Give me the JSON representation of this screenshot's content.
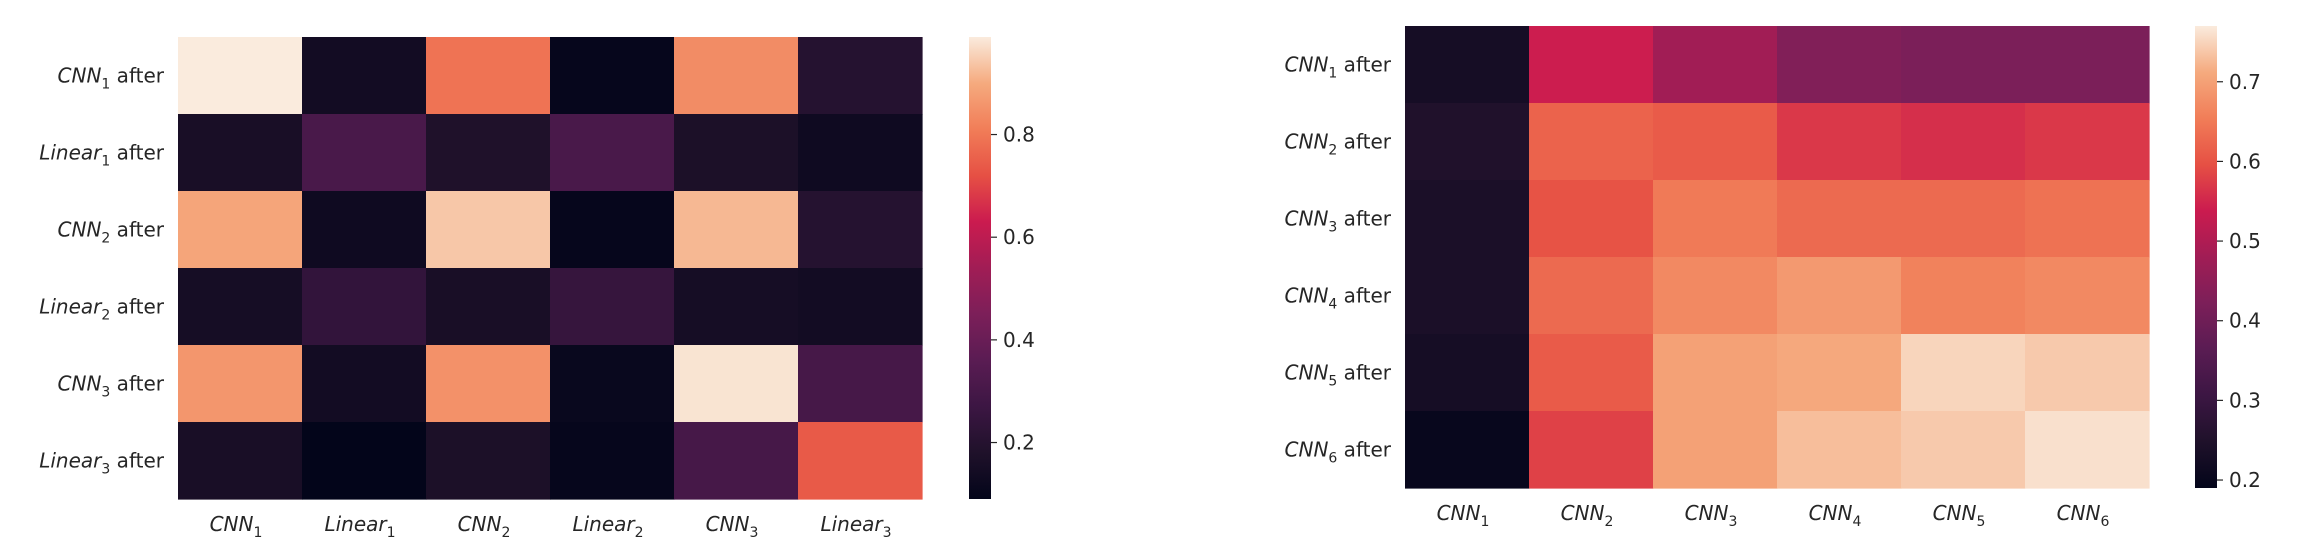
{
  "chart_data": [
    {
      "type": "heatmap",
      "rows": [
        {
          "main": "CNN",
          "sub": "1",
          "suffix": " after"
        },
        {
          "main": "Linear",
          "sub": "1",
          "suffix": " after"
        },
        {
          "main": "CNN",
          "sub": "2",
          "suffix": " after"
        },
        {
          "main": "Linear",
          "sub": "2",
          "suffix": " after"
        },
        {
          "main": "CNN",
          "sub": "3",
          "suffix": " after"
        },
        {
          "main": "Linear",
          "sub": "3",
          "suffix": " after"
        }
      ],
      "cols": [
        {
          "main": "CNN",
          "sub": "1"
        },
        {
          "main": "Linear",
          "sub": "1"
        },
        {
          "main": "CNN",
          "sub": "2"
        },
        {
          "main": "Linear",
          "sub": "2"
        },
        {
          "main": "CNN",
          "sub": "3"
        },
        {
          "main": "Linear",
          "sub": "3"
        }
      ],
      "values": [
        [
          0.99,
          0.14,
          0.79,
          0.1,
          0.84,
          0.2
        ],
        [
          0.16,
          0.31,
          0.18,
          0.31,
          0.17,
          0.13
        ],
        [
          0.89,
          0.13,
          0.94,
          0.1,
          0.92,
          0.2
        ],
        [
          0.15,
          0.24,
          0.16,
          0.25,
          0.15,
          0.14
        ],
        [
          0.86,
          0.14,
          0.85,
          0.11,
          0.98,
          0.3
        ],
        [
          0.16,
          0.09,
          0.17,
          0.1,
          0.3,
          0.74
        ]
      ],
      "colorbar": {
        "min": 0.09,
        "max": 0.99,
        "ticks": [
          "0.2",
          "0.4",
          "0.6",
          "0.8"
        ]
      }
    },
    {
      "type": "heatmap",
      "rows": [
        {
          "main": "CNN",
          "sub": "1",
          "suffix": " after"
        },
        {
          "main": "CNN",
          "sub": "2",
          "suffix": " after"
        },
        {
          "main": "CNN",
          "sub": "3",
          "suffix": " after"
        },
        {
          "main": "CNN",
          "sub": "4",
          "suffix": " after"
        },
        {
          "main": "CNN",
          "sub": "5",
          "suffix": " after"
        },
        {
          "main": "CNN",
          "sub": "6",
          "suffix": " after"
        }
      ],
      "cols": [
        {
          "main": "CNN",
          "sub": "1"
        },
        {
          "main": "CNN",
          "sub": "2"
        },
        {
          "main": "CNN",
          "sub": "3"
        },
        {
          "main": "CNN",
          "sub": "4"
        },
        {
          "main": "CNN",
          "sub": "5"
        },
        {
          "main": "CNN",
          "sub": "6"
        }
      ],
      "values": [
        [
          0.23,
          0.54,
          0.48,
          0.43,
          0.42,
          0.42
        ],
        [
          0.25,
          0.62,
          0.61,
          0.57,
          0.56,
          0.57
        ],
        [
          0.24,
          0.6,
          0.65,
          0.63,
          0.63,
          0.64
        ],
        [
          0.24,
          0.63,
          0.67,
          0.69,
          0.66,
          0.67
        ],
        [
          0.23,
          0.61,
          0.7,
          0.71,
          0.75,
          0.74
        ],
        [
          0.2,
          0.58,
          0.7,
          0.73,
          0.74,
          0.76
        ]
      ],
      "colorbar": {
        "min": 0.19,
        "max": 0.77,
        "ticks": [
          "0.2",
          "0.3",
          "0.4",
          "0.5",
          "0.6",
          "0.7"
        ]
      }
    }
  ]
}
